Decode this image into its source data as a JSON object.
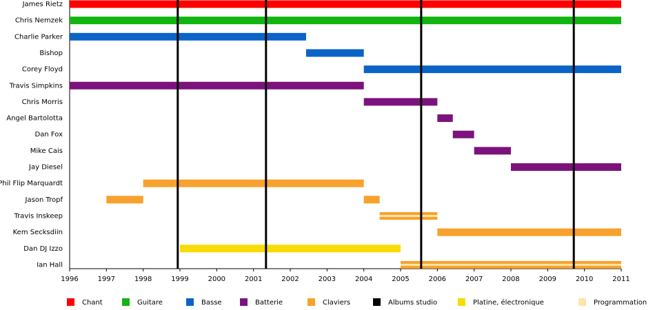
{
  "chart_data": {
    "type": "timeline",
    "xlim": [
      1996,
      2011
    ],
    "xticks": [
      1996,
      1997,
      1998,
      1999,
      2000,
      2001,
      2002,
      2003,
      2004,
      2005,
      2006,
      2007,
      2008,
      2009,
      2010,
      2011
    ],
    "series": [
      {
        "name": "Chant",
        "color": "#ff0000"
      },
      {
        "name": "Guitare",
        "color": "#11b511"
      },
      {
        "name": "Basse",
        "color": "#0a64c8"
      },
      {
        "name": "Batterie",
        "color": "#7c137c"
      },
      {
        "name": "Claviers",
        "color": "#f8a12c"
      },
      {
        "name": "Albums studio",
        "color": "#000000"
      },
      {
        "name": "Platine, électronique",
        "color": "#f7dc05"
      },
      {
        "name": "Programmation",
        "color": "#ffe4a8"
      }
    ],
    "albums": [
      1998.94,
      2001.34,
      2005.56,
      2009.71
    ],
    "members": [
      {
        "name": "James Rietz",
        "spans": [
          {
            "start": 1996,
            "end": 2011,
            "roles": [
              "Chant"
            ]
          }
        ]
      },
      {
        "name": "Chris Nemzek",
        "spans": [
          {
            "start": 1996,
            "end": 2011,
            "roles": [
              "Guitare"
            ]
          }
        ]
      },
      {
        "name": "Charlie Parker",
        "spans": [
          {
            "start": 1996,
            "end": 2002.43,
            "roles": [
              "Basse"
            ]
          }
        ]
      },
      {
        "name": "Bishop",
        "spans": [
          {
            "start": 2002.43,
            "end": 2004,
            "roles": [
              "Basse"
            ]
          }
        ]
      },
      {
        "name": "Corey Floyd",
        "spans": [
          {
            "start": 2004,
            "end": 2011,
            "roles": [
              "Basse"
            ]
          }
        ]
      },
      {
        "name": "Travis Simpkins",
        "spans": [
          {
            "start": 1996,
            "end": 2004,
            "roles": [
              "Batterie"
            ]
          }
        ]
      },
      {
        "name": "Chris Morris",
        "spans": [
          {
            "start": 2004,
            "end": 2006,
            "roles": [
              "Batterie"
            ]
          }
        ]
      },
      {
        "name": "Angel Bartolotta",
        "spans": [
          {
            "start": 2006,
            "end": 2006.42,
            "roles": [
              "Batterie"
            ]
          }
        ]
      },
      {
        "name": "Dan Fox",
        "spans": [
          {
            "start": 2006.42,
            "end": 2007,
            "roles": [
              "Batterie"
            ]
          }
        ]
      },
      {
        "name": "Mike Cais",
        "spans": [
          {
            "start": 2007,
            "end": 2008,
            "roles": [
              "Batterie"
            ]
          }
        ]
      },
      {
        "name": "Jay Diesel",
        "spans": [
          {
            "start": 2008,
            "end": 2011,
            "roles": [
              "Batterie"
            ]
          }
        ]
      },
      {
        "name": "Phil Flip Marquardt",
        "spans": [
          {
            "start": 1998,
            "end": 2004,
            "roles": [
              "Claviers"
            ]
          }
        ]
      },
      {
        "name": "Jason Tropf",
        "spans": [
          {
            "start": 1997,
            "end": 1998,
            "roles": [
              "Claviers"
            ]
          },
          {
            "start": 2004,
            "end": 2004.43,
            "roles": [
              "Claviers"
            ]
          }
        ]
      },
      {
        "name": "Travis Inskeep",
        "spans": [
          {
            "start": 2004.43,
            "end": 2006,
            "roles": [
              "Claviers",
              "Programmation"
            ]
          }
        ]
      },
      {
        "name": "Kem Secksdiin",
        "spans": [
          {
            "start": 2006,
            "end": 2011,
            "roles": [
              "Claviers"
            ]
          }
        ]
      },
      {
        "name": "Dan DJ Izzo",
        "spans": [
          {
            "start": 1999,
            "end": 2005,
            "roles": [
              "Platine, électronique"
            ]
          }
        ]
      },
      {
        "name": "Ian Hall",
        "spans": [
          {
            "start": 2005,
            "end": 2011,
            "roles": [
              "Claviers",
              "Programmation"
            ]
          }
        ]
      }
    ]
  }
}
